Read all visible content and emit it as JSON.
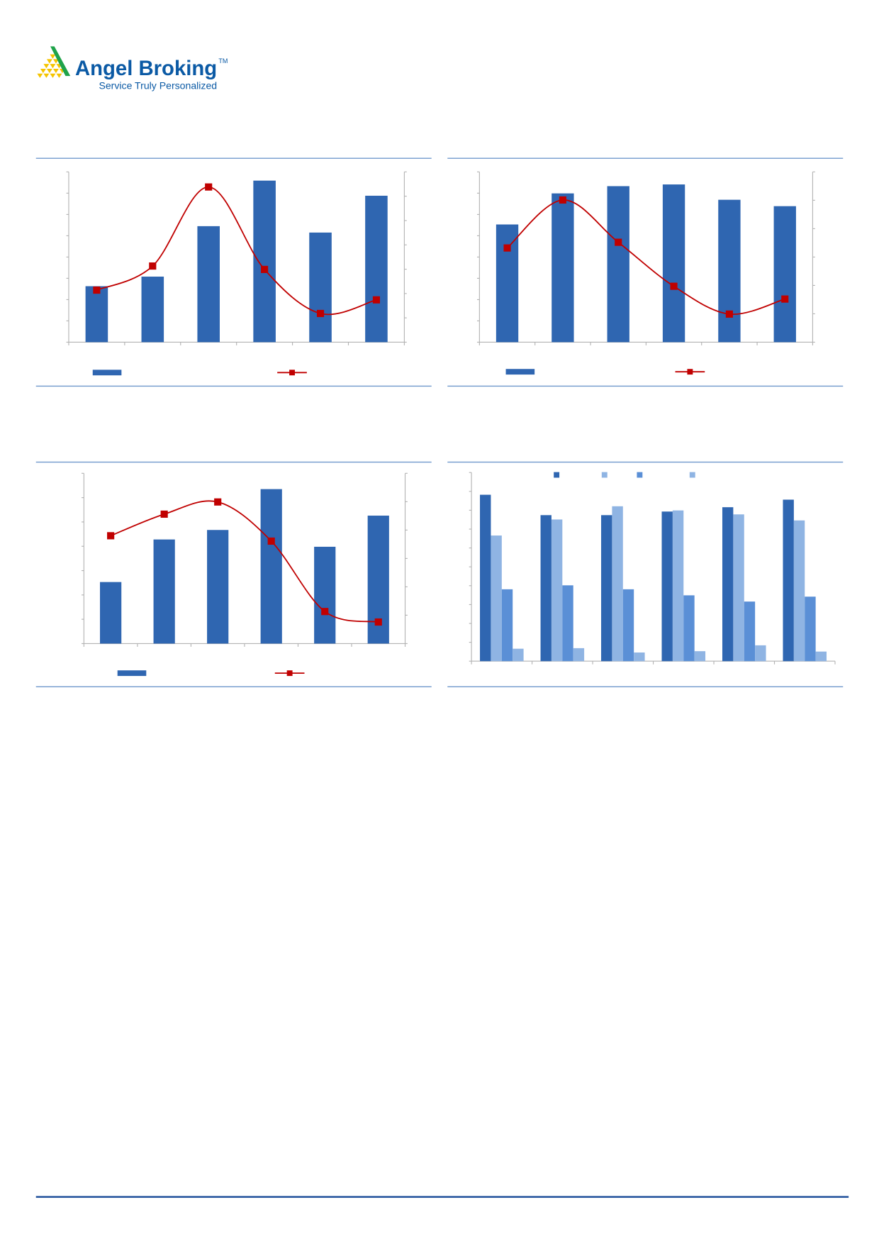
{
  "logo": {
    "name": "Angel Broking",
    "trademark": "TM",
    "tagline": "Service Truly Personalized",
    "colors": {
      "text": "#0b5aa5",
      "triangle": "#f5c400",
      "stripe": "#1fa34a"
    }
  },
  "colors": {
    "rule": "#6f98cc",
    "footer_rule": "#1f4f9a",
    "bar": "#2f66b1",
    "line": "#c00000",
    "axis": "#b3b3b3"
  },
  "chart_data": [
    {
      "type": "bar+line",
      "title": "",
      "categories": [
        "",
        "",
        "",
        "",
        "",
        ""
      ],
      "series": [
        {
          "kind": "bar",
          "axis": "left",
          "color": "#2f66b1",
          "values": [
            2.63,
            3.08,
            5.45,
            7.59,
            5.15,
            6.88
          ]
        },
        {
          "kind": "line",
          "axis": "right",
          "color": "#c00000",
          "marker": "square",
          "smooth": true,
          "values": [
            2.14,
            3.13,
            6.38,
            2.99,
            1.18,
            1.74
          ]
        }
      ],
      "ylim_left": [
        0,
        8
      ],
      "ylim_right": [
        0,
        7
      ],
      "grid": false,
      "legend": "bottom"
    },
    {
      "type": "bar+line",
      "title": "",
      "categories": [
        "",
        "",
        "",
        "",
        "",
        ""
      ],
      "series": [
        {
          "kind": "bar",
          "axis": "left",
          "color": "#2f66b1",
          "values": [
            5.53,
            6.99,
            7.33,
            7.41,
            6.69,
            6.39
          ]
        },
        {
          "kind": "line",
          "axis": "right",
          "color": "#c00000",
          "marker": "square",
          "smooth": true,
          "values": [
            3.32,
            5.01,
            3.52,
            1.97,
            0.99,
            1.52
          ]
        }
      ],
      "ylim_left": [
        0,
        8
      ],
      "ylim_right": [
        0,
        6
      ],
      "grid": false,
      "legend": "bottom"
    },
    {
      "type": "bar+line",
      "title": "",
      "categories": [
        "",
        "",
        "",
        "",
        "",
        ""
      ],
      "series": [
        {
          "kind": "bar",
          "axis": "left",
          "color": "#2f66b1",
          "values": [
            2.53,
            4.28,
            4.67,
            6.35,
            3.98,
            5.26
          ]
        },
        {
          "kind": "line",
          "axis": "right",
          "color": "#c00000",
          "marker": "square",
          "smooth": true,
          "values": [
            3.8,
            4.56,
            4.99,
            3.61,
            1.13,
            0.76
          ]
        }
      ],
      "ylim_left": [
        0,
        7
      ],
      "ylim_right": [
        0,
        6
      ],
      "grid": false,
      "legend": "bottom"
    },
    {
      "type": "bar",
      "title": "",
      "categories": [
        "",
        "",
        "",
        "",
        "",
        ""
      ],
      "series": [
        {
          "color": "#2f66b1",
          "values": [
            8.82,
            7.74,
            7.74,
            7.93,
            8.16,
            8.56
          ]
        },
        {
          "color": "#8fb4e3",
          "values": [
            6.66,
            7.51,
            8.21,
            7.99,
            7.78,
            7.46
          ]
        },
        {
          "color": "#5a8fd6",
          "values": [
            3.81,
            4.02,
            3.81,
            3.49,
            3.16,
            3.42
          ]
        },
        {
          "color": "#8fb4e3",
          "values": [
            0.66,
            0.69,
            0.46,
            0.53,
            0.84,
            0.51
          ]
        }
      ],
      "ylim": [
        0,
        10
      ],
      "grid": false,
      "legend": "top"
    }
  ]
}
